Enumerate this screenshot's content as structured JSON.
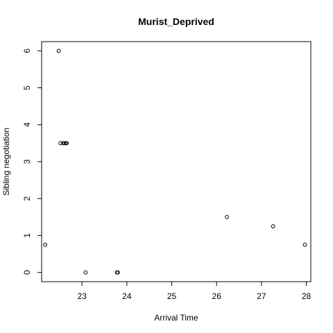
{
  "chart_data": {
    "type": "scatter",
    "title": "Murist_Deprived",
    "xlabel": "Arrival Time",
    "ylabel": "Sibling negotiation",
    "xlim": [
      22.1,
      28.1
    ],
    "ylim": [
      -0.25,
      6.25
    ],
    "xticks": [
      23,
      24,
      25,
      26,
      27,
      28
    ],
    "yticks": [
      0,
      1,
      2,
      3,
      4,
      5,
      6
    ],
    "grid": false,
    "points": [
      {
        "x": 22.18,
        "y": 0.75
      },
      {
        "x": 22.48,
        "y": 6.0
      },
      {
        "x": 22.52,
        "y": 3.5
      },
      {
        "x": 22.58,
        "y": 3.5
      },
      {
        "x": 22.61,
        "y": 3.5
      },
      {
        "x": 22.64,
        "y": 3.5
      },
      {
        "x": 22.66,
        "y": 3.5
      },
      {
        "x": 23.08,
        "y": 0.0
      },
      {
        "x": 23.78,
        "y": 0.0
      },
      {
        "x": 23.8,
        "y": 0.0
      },
      {
        "x": 26.23,
        "y": 1.5
      },
      {
        "x": 27.26,
        "y": 1.25
      },
      {
        "x": 27.97,
        "y": 0.75
      }
    ]
  }
}
